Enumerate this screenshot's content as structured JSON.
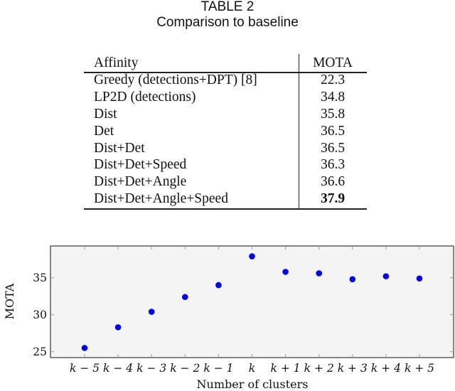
{
  "caption": {
    "label": "TABLE 2",
    "title": "Comparison to baseline"
  },
  "table": {
    "headers": [
      "Affinity",
      "MOTA"
    ],
    "rows": [
      {
        "affinity": "Greedy (detections+DPT) [8]",
        "mota": "22.3",
        "bold": false
      },
      {
        "affinity": "LP2D (detections)",
        "mota": "34.8",
        "bold": false
      },
      {
        "affinity": "Dist",
        "mota": "35.8",
        "bold": false
      },
      {
        "affinity": "Det",
        "mota": "36.5",
        "bold": false
      },
      {
        "affinity": "Dist+Det",
        "mota": "36.5",
        "bold": false
      },
      {
        "affinity": "Dist+Det+Speed",
        "mota": "36.3",
        "bold": false
      },
      {
        "affinity": "Dist+Det+Angle",
        "mota": "36.6",
        "bold": false
      },
      {
        "affinity": "Dist+Det+Angle+Speed",
        "mota": "37.9",
        "bold": true
      }
    ]
  },
  "chart_data": {
    "type": "scatter",
    "title": "",
    "xlabel": "Number of clusters",
    "ylabel": "MOTA",
    "categories": [
      "k − 5",
      "k − 4",
      "k − 3",
      "k − 2",
      "k − 1",
      "k",
      "k + 1",
      "k + 2",
      "k + 3",
      "k + 4",
      "k + 5"
    ],
    "values": [
      25.5,
      28.3,
      30.4,
      32.4,
      34.0,
      37.9,
      35.8,
      35.6,
      34.8,
      35.2,
      34.9
    ],
    "yticks": [
      25,
      30,
      35
    ],
    "ylim": [
      24.2,
      39.3
    ],
    "grid": false,
    "legend": null,
    "marker_color": "#0000e6",
    "background_color": "#f4f4f4"
  }
}
